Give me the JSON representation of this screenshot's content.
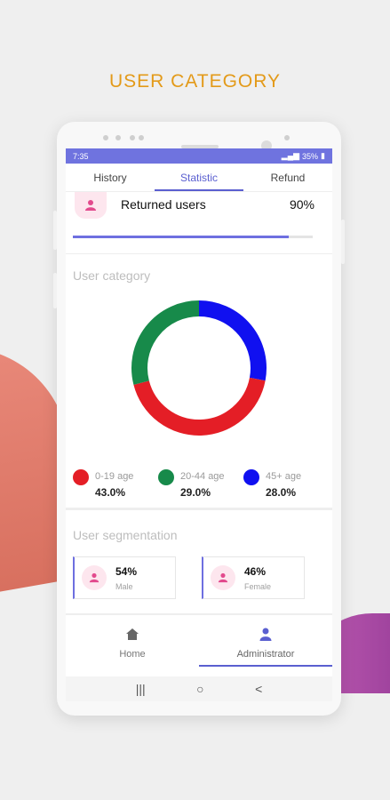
{
  "headline": "USER CATEGORY",
  "status_bar": {
    "time": "7:35",
    "battery": "35%"
  },
  "tabs": [
    {
      "label": "History",
      "active": false
    },
    {
      "label": "Statistic",
      "active": true
    },
    {
      "label": "Refund",
      "active": false
    }
  ],
  "returned": {
    "label": "Returned users",
    "value": "90%",
    "progress": 0.9
  },
  "user_category": {
    "title": "User category",
    "segments": [
      {
        "label": "0-19 age",
        "value": "43.0%",
        "percent": 43.0,
        "color": "#e41e26"
      },
      {
        "label": "20-44 age",
        "value": "29.0%",
        "percent": 29.0,
        "color": "#178a4a"
      },
      {
        "label": "45+ age",
        "value": "28.0%",
        "percent": 28.0,
        "color": "#1010f0"
      }
    ]
  },
  "user_segmentation": {
    "title": "User segmentation",
    "items": [
      {
        "percent": "54%",
        "label": "Male"
      },
      {
        "percent": "46%",
        "label": "Female"
      }
    ]
  },
  "bottom_nav": [
    {
      "label": "Home",
      "icon": "home-icon",
      "active": false
    },
    {
      "label": "Administrator",
      "icon": "person-icon",
      "active": true
    }
  ],
  "system_nav": {
    "recents": "|||",
    "home": "○",
    "back": "<"
  },
  "colors": {
    "accent": "#5a5fd0",
    "headline": "#e39a19",
    "icon_pink": "#e24a8d",
    "icon_bg": "#fde6ee"
  }
}
